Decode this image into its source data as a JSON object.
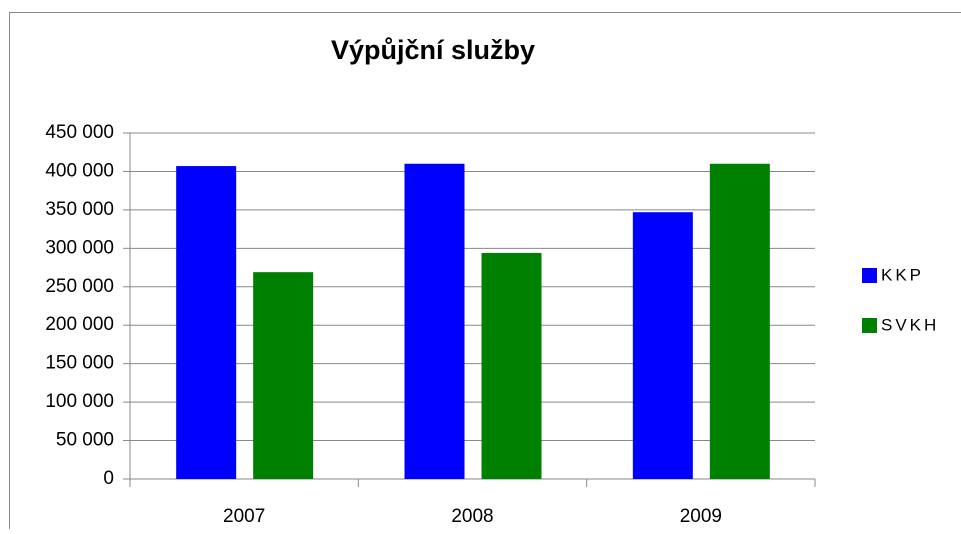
{
  "chart_data": {
    "type": "bar",
    "title": "Výpůjční služby",
    "categories": [
      "2007",
      "2008",
      "2009"
    ],
    "series": [
      {
        "name": "KKP",
        "color": "#0000ff",
        "values": [
          407000,
          410000,
          347000
        ]
      },
      {
        "name": "SVKH",
        "color": "#008000",
        "values": [
          269000,
          294000,
          410000
        ]
      }
    ],
    "ylim": [
      0,
      450000
    ],
    "yticks": [
      0,
      {
        "value": 50000,
        "label": "50 000"
      },
      {
        "value": 100000,
        "label": "100 000"
      },
      {
        "value": 150000,
        "label": "150 000"
      },
      {
        "value": 200000,
        "label": "200 000"
      },
      {
        "value": 250000,
        "label": "250 000"
      },
      {
        "value": 300000,
        "label": "300 000"
      },
      {
        "value": 350000,
        "label": "350 000"
      },
      {
        "value": 400000,
        "label": "400 000"
      },
      {
        "value": 450000,
        "label": "450 000"
      }
    ],
    "grid": true,
    "legend": "right"
  }
}
